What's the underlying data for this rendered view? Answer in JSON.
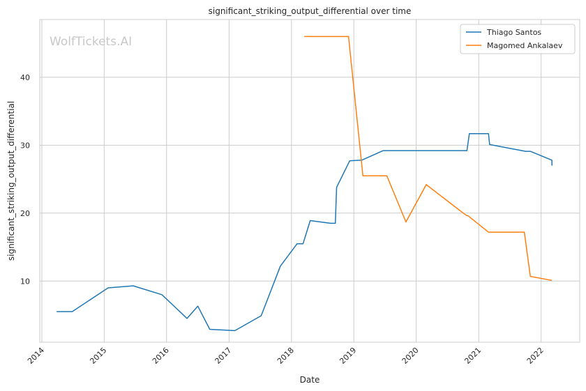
{
  "chart_data": {
    "type": "line",
    "title": "significant_striking_output_differential over time",
    "xlabel": "Date",
    "ylabel": "significant_striking_output_differential",
    "watermark": "WolfTickets.AI",
    "xlim": [
      "2013-12-20",
      "2022-08-15"
    ],
    "ylim": [
      1,
      48.5
    ],
    "x_ticks": [
      "2014",
      "2015",
      "2016",
      "2017",
      "2018",
      "2019",
      "2020",
      "2021",
      "2022"
    ],
    "y_ticks": [
      10,
      20,
      30,
      40
    ],
    "grid": true,
    "legend_position": "top-right",
    "series": [
      {
        "name": "Thiago Santos",
        "color": "#1f77b4",
        "points": [
          [
            "2014-03-29",
            5.5
          ],
          [
            "2014-06-28",
            5.5
          ],
          [
            "2015-01-24",
            9.0
          ],
          [
            "2015-06-20",
            9.3
          ],
          [
            "2015-12-05",
            8.0
          ],
          [
            "2016-04-30",
            4.5
          ],
          [
            "2016-07-02",
            6.3
          ],
          [
            "2016-09-10",
            2.9
          ],
          [
            "2017-02-04",
            2.7
          ],
          [
            "2017-07-08",
            4.9
          ],
          [
            "2017-10-28",
            12.2
          ],
          [
            "2018-02-03",
            15.5
          ],
          [
            "2018-03-10",
            15.5
          ],
          [
            "2018-04-21",
            18.9
          ],
          [
            "2018-08-18",
            18.5
          ],
          [
            "2018-09-15",
            18.5
          ],
          [
            "2018-09-22",
            23.8
          ],
          [
            "2018-12-08",
            27.7
          ],
          [
            "2019-02-16",
            27.8
          ],
          [
            "2019-06-22",
            29.2
          ],
          [
            "2019-12-07",
            29.2
          ],
          [
            "2020-06-13",
            29.2
          ],
          [
            "2020-10-24",
            29.2
          ],
          [
            "2020-11-07",
            31.7
          ],
          [
            "2021-02-27",
            31.7
          ],
          [
            "2021-03-06",
            30.1
          ],
          [
            "2021-10-02",
            29.1
          ],
          [
            "2021-10-30",
            29.1
          ],
          [
            "2022-03-05",
            27.8
          ],
          [
            "2022-03-06",
            27.0
          ]
        ]
      },
      {
        "name": "Magomed Ankalaev",
        "color": "#ff7f0e",
        "points": [
          [
            "2018-03-17",
            46.0
          ],
          [
            "2018-12-01",
            46.0
          ],
          [
            "2019-02-23",
            25.5
          ],
          [
            "2019-07-13",
            25.5
          ],
          [
            "2019-11-02",
            18.7
          ],
          [
            "2020-02-29",
            24.2
          ],
          [
            "2020-10-18",
            19.7
          ],
          [
            "2020-10-31",
            19.6
          ],
          [
            "2021-02-27",
            17.2
          ],
          [
            "2021-09-25",
            17.2
          ],
          [
            "2021-10-30",
            10.7
          ],
          [
            "2022-03-05",
            10.1
          ]
        ]
      }
    ]
  }
}
